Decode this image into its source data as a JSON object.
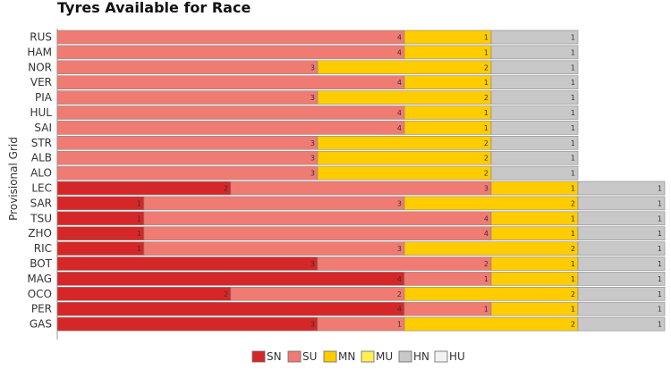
{
  "chart_data": {
    "type": "bar",
    "orientation": "horizontal",
    "stacked": true,
    "title": "Tyres Available for Race",
    "ylabel": "Provisional Grid",
    "xlabel": "",
    "xlim": [
      0,
      7
    ],
    "grid": false,
    "legend_position": "bottom",
    "categories": [
      "RUS",
      "HAM",
      "NOR",
      "VER",
      "PIA",
      "HUL",
      "SAI",
      "STR",
      "ALB",
      "ALO",
      "LEC",
      "SAR",
      "TSU",
      "ZHO",
      "RIC",
      "BOT",
      "MAG",
      "OCO",
      "PER",
      "GAS"
    ],
    "series": [
      {
        "name": "SN",
        "color": "#d62728",
        "values": [
          0,
          0,
          0,
          0,
          0,
          0,
          0,
          0,
          0,
          0,
          2,
          1,
          1,
          1,
          1,
          3,
          4,
          2,
          4,
          3
        ]
      },
      {
        "name": "SU",
        "color": "#f07b72",
        "values": [
          4,
          4,
          3,
          4,
          3,
          4,
          4,
          3,
          3,
          3,
          3,
          3,
          4,
          4,
          3,
          2,
          1,
          2,
          1,
          1
        ]
      },
      {
        "name": "MN",
        "color": "#ffcc00",
        "values": [
          1,
          1,
          2,
          1,
          2,
          1,
          1,
          2,
          2,
          2,
          1,
          2,
          1,
          1,
          2,
          1,
          1,
          2,
          1,
          2
        ]
      },
      {
        "name": "MU",
        "color": "#ffee55",
        "values": [
          0,
          0,
          0,
          0,
          0,
          0,
          0,
          0,
          0,
          0,
          0,
          0,
          0,
          0,
          0,
          0,
          0,
          0,
          0,
          0
        ]
      },
      {
        "name": "HN",
        "color": "#c8c8c8",
        "values": [
          1,
          1,
          1,
          1,
          1,
          1,
          1,
          1,
          1,
          1,
          1,
          1,
          1,
          1,
          1,
          1,
          1,
          1,
          1,
          1
        ]
      },
      {
        "name": "HU",
        "color": "#f2f2f2",
        "values": [
          0,
          0,
          0,
          0,
          0,
          0,
          0,
          0,
          0,
          0,
          0,
          0,
          0,
          0,
          0,
          0,
          0,
          0,
          0,
          0
        ]
      }
    ]
  }
}
